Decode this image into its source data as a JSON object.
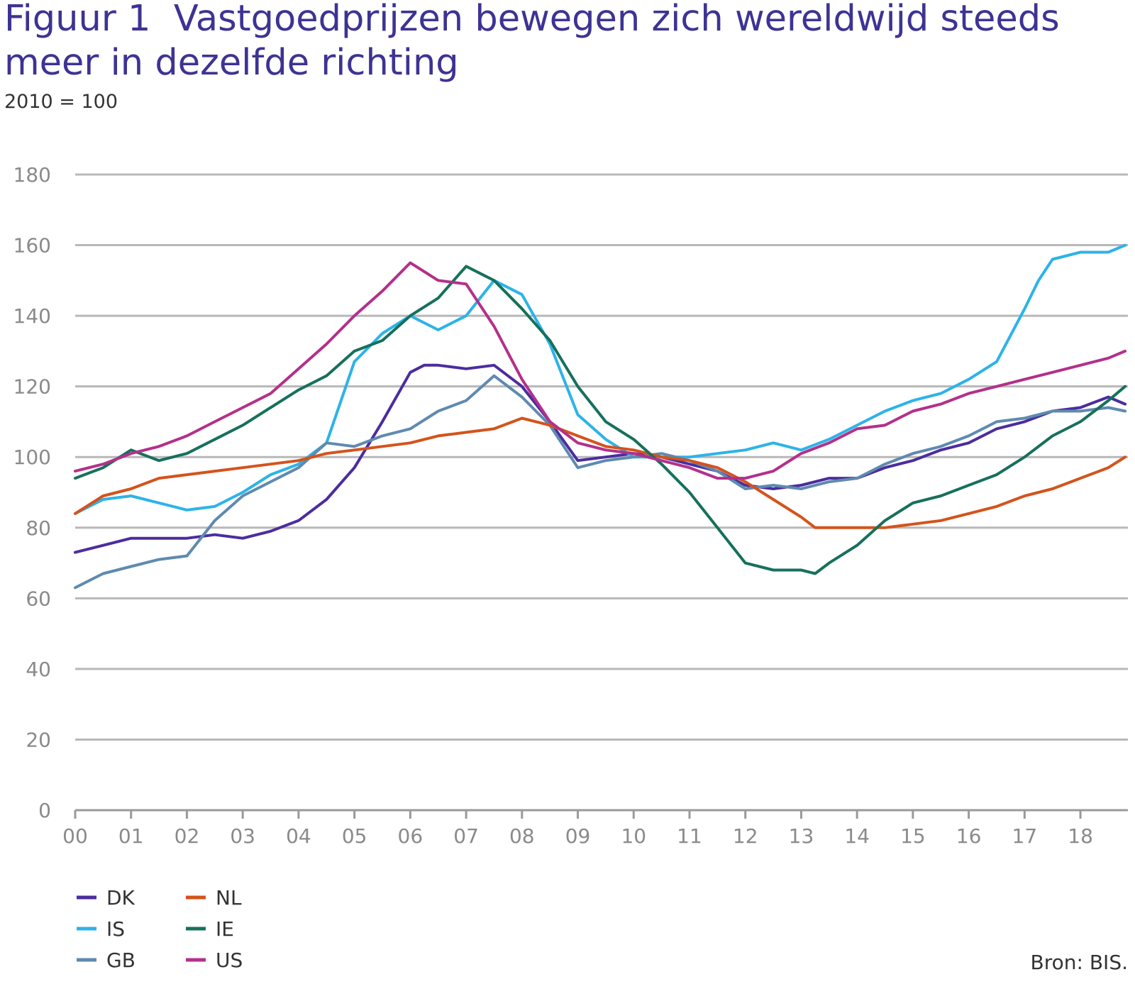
{
  "chart_data": {
    "type": "line",
    "title_prefix": "Figuur 1",
    "title": "Vastgoedprijzen bewegen zich wereldwijd steeds meer in dezelfde richting",
    "subtitle": "2010 = 100",
    "source": "Bron: BIS.",
    "xlabel": "",
    "ylabel": "",
    "ylim": [
      0,
      180
    ],
    "xlim": [
      2000,
      2018.85
    ],
    "yticks": [
      0,
      20,
      40,
      60,
      80,
      100,
      120,
      140,
      160,
      180
    ],
    "xticks": [
      2000,
      2001,
      2002,
      2003,
      2004,
      2005,
      2006,
      2007,
      2008,
      2009,
      2010,
      2011,
      2012,
      2013,
      2014,
      2015,
      2016,
      2017,
      2018
    ],
    "xtick_labels": [
      "00",
      "01",
      "02",
      "03",
      "04",
      "05",
      "06",
      "07",
      "08",
      "09",
      "10",
      "11",
      "12",
      "13",
      "14",
      "15",
      "16",
      "17",
      "18"
    ],
    "grid": true,
    "legend_position": "bottom-left",
    "series": [
      {
        "name": "DK",
        "color": "#4b2d9e",
        "x": [
          2000,
          2000.5,
          2001,
          2001.5,
          2002,
          2002.5,
          2003,
          2003.5,
          2004,
          2004.5,
          2005,
          2005.5,
          2006,
          2006.25,
          2006.5,
          2007,
          2007.5,
          2008,
          2008.5,
          2009,
          2009.5,
          2010,
          2010.5,
          2011,
          2011.5,
          2012,
          2012.5,
          2013,
          2013.5,
          2014,
          2014.5,
          2015,
          2015.5,
          2016,
          2016.5,
          2017,
          2017.5,
          2018,
          2018.5,
          2018.8
        ],
        "values": [
          73,
          75,
          77,
          77,
          77,
          78,
          77,
          79,
          82,
          88,
          97,
          110,
          124,
          126,
          126,
          125,
          126,
          120,
          110,
          99,
          100,
          101,
          100,
          98,
          96,
          92,
          91,
          92,
          94,
          94,
          97,
          99,
          102,
          104,
          108,
          110,
          113,
          114,
          117,
          115
        ]
      },
      {
        "name": "IS",
        "color": "#2db3e8",
        "x": [
          2000,
          2000.5,
          2001,
          2001.5,
          2002,
          2002.5,
          2003,
          2003.5,
          2004,
          2004.5,
          2005,
          2005.5,
          2006,
          2006.5,
          2007,
          2007.5,
          2008,
          2008.5,
          2009,
          2009.5,
          2010,
          2010.5,
          2011,
          2011.5,
          2012,
          2012.5,
          2013,
          2013.5,
          2014,
          2014.5,
          2015,
          2015.5,
          2016,
          2016.5,
          2017,
          2017.25,
          2017.5,
          2018,
          2018.5,
          2018.8
        ],
        "values": [
          84,
          88,
          89,
          87,
          85,
          86,
          90,
          95,
          98,
          104,
          127,
          135,
          140,
          136,
          140,
          150,
          146,
          132,
          112,
          105,
          100,
          100,
          100,
          101,
          102,
          104,
          102,
          105,
          109,
          113,
          116,
          118,
          122,
          127,
          142,
          150,
          156,
          158,
          158,
          160
        ]
      },
      {
        "name": "GB",
        "color": "#5f8ab0",
        "x": [
          2000,
          2000.5,
          2001,
          2001.5,
          2002,
          2002.5,
          2003,
          2003.5,
          2004,
          2004.5,
          2005,
          2005.5,
          2006,
          2006.5,
          2007,
          2007.5,
          2008,
          2008.5,
          2009,
          2009.5,
          2010,
          2010.5,
          2011,
          2011.5,
          2012,
          2012.5,
          2013,
          2013.5,
          2014,
          2014.5,
          2015,
          2015.5,
          2016,
          2016.5,
          2017,
          2017.5,
          2018,
          2018.5,
          2018.8
        ],
        "values": [
          63,
          67,
          69,
          71,
          72,
          82,
          89,
          93,
          97,
          104,
          103,
          106,
          108,
          113,
          116,
          123,
          117,
          109,
          97,
          99,
          100,
          101,
          99,
          96,
          91,
          92,
          91,
          93,
          94,
          98,
          101,
          103,
          106,
          110,
          111,
          113,
          113,
          114,
          113
        ]
      },
      {
        "name": "NL",
        "color": "#d4531c",
        "x": [
          2000,
          2000.5,
          2001,
          2001.5,
          2002,
          2002.5,
          2003,
          2003.5,
          2004,
          2004.5,
          2005,
          2005.5,
          2006,
          2006.5,
          2007,
          2007.5,
          2008,
          2008.5,
          2009,
          2009.5,
          2010,
          2010.5,
          2011,
          2011.5,
          2012,
          2012.5,
          2013,
          2013.25,
          2013.5,
          2014,
          2014.5,
          2015,
          2015.5,
          2016,
          2016.5,
          2017,
          2017.5,
          2018,
          2018.5,
          2018.8
        ],
        "values": [
          84,
          89,
          91,
          94,
          95,
          96,
          97,
          98,
          99,
          101,
          102,
          103,
          104,
          106,
          107,
          108,
          111,
          109,
          106,
          103,
          102,
          100,
          99,
          97,
          93,
          88,
          83,
          80,
          80,
          80,
          80,
          81,
          82,
          84,
          86,
          89,
          91,
          94,
          97,
          100
        ]
      },
      {
        "name": "IE",
        "color": "#16705c",
        "x": [
          2000,
          2000.5,
          2001,
          2001.5,
          2002,
          2002.5,
          2003,
          2003.5,
          2004,
          2004.5,
          2005,
          2005.5,
          2006,
          2006.5,
          2007,
          2007.5,
          2008,
          2008.5,
          2009,
          2009.5,
          2010,
          2010.5,
          2011,
          2011.5,
          2012,
          2012.5,
          2013,
          2013.25,
          2013.5,
          2014,
          2014.5,
          2015,
          2015.5,
          2016,
          2016.5,
          2017,
          2017.5,
          2018,
          2018.5,
          2018.8
        ],
        "values": [
          94,
          97,
          102,
          99,
          101,
          105,
          109,
          114,
          119,
          123,
          130,
          133,
          140,
          145,
          154,
          150,
          142,
          133,
          120,
          110,
          105,
          98,
          90,
          80,
          70,
          68,
          68,
          67,
          70,
          75,
          82,
          87,
          89,
          92,
          95,
          100,
          106,
          110,
          116,
          120
        ]
      },
      {
        "name": "US",
        "color": "#b3308a",
        "x": [
          2000,
          2000.5,
          2001,
          2001.5,
          2002,
          2002.5,
          2003,
          2003.5,
          2004,
          2004.5,
          2005,
          2005.5,
          2006,
          2006.5,
          2007,
          2007.5,
          2008,
          2008.5,
          2009,
          2009.5,
          2010,
          2010.5,
          2011,
          2011.5,
          2012,
          2012.5,
          2013,
          2013.5,
          2014,
          2014.5,
          2015,
          2015.5,
          2016,
          2016.5,
          2017,
          2017.5,
          2018,
          2018.5,
          2018.8
        ],
        "values": [
          96,
          98,
          101,
          103,
          106,
          110,
          114,
          118,
          125,
          132,
          140,
          147,
          155,
          150,
          149,
          137,
          122,
          110,
          104,
          102,
          101,
          99,
          97,
          94,
          94,
          96,
          101,
          104,
          108,
          109,
          113,
          115,
          118,
          120,
          122,
          124,
          126,
          128,
          130
        ]
      }
    ]
  }
}
